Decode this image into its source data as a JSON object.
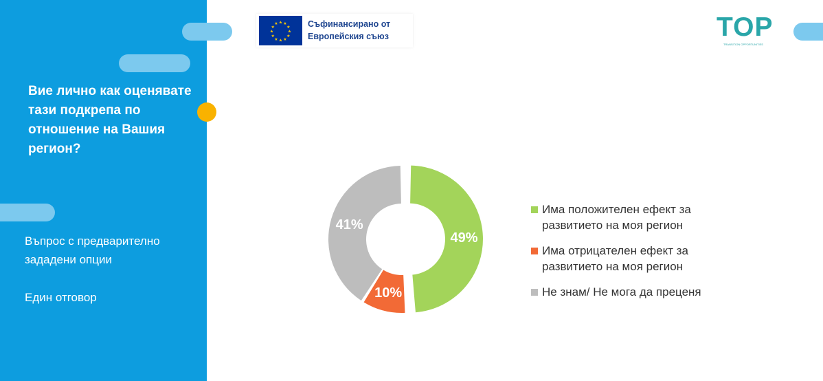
{
  "sidebar": {
    "question": "Вие лично как оценявате тази подкрепа по отношение на Вашия регион?",
    "question_type": "Въпрос с предварително зададени опции",
    "answer_type": "Един отговор"
  },
  "header": {
    "eu_line1": "Съфинансирано от",
    "eu_line2": "Европейския съюз",
    "logo_text": "TOP",
    "logo_tagline": "TRANSITION OPPORTUNITIES"
  },
  "colors": {
    "sidebar_bg": "#0d9ddf",
    "accent_dot": "#f9b200",
    "positive": "#a3d45a",
    "negative": "#f26a36",
    "dont_know": "#bdbdbd"
  },
  "chart_data": {
    "type": "pie",
    "donut": true,
    "categories": [
      "Има положителен ефект за развитието на моя регион",
      "Има отрицателен ефект за развитието на моя регион",
      "Не знам/ Не мога да преценя"
    ],
    "legend_lines": [
      [
        "Има положителен ефект за",
        "развитието на моя регион"
      ],
      [
        "Има отрицателен ефект за",
        "развитието на моя регион"
      ],
      [
        "Не знам/ Не мога да преценя"
      ]
    ],
    "values": [
      49,
      10,
      41
    ],
    "labels": [
      "49%",
      "10%",
      "41%"
    ],
    "colors": [
      "#a3d45a",
      "#f26a36",
      "#bdbdbd"
    ],
    "exploded": [
      true,
      false,
      false
    ],
    "legend_position": "right"
  }
}
